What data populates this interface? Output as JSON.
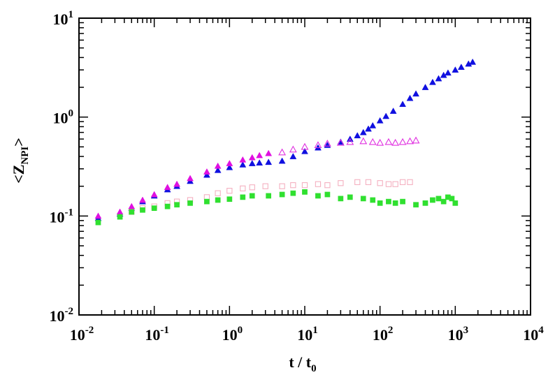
{
  "chart_data": {
    "type": "scatter",
    "title": "",
    "xlabel": {
      "main": "t / t",
      "sub": "0"
    },
    "ylabel": {
      "main": "<Z",
      "sub": "NPI",
      "end": ">"
    },
    "xscale": "log",
    "yscale": "log",
    "xlim": [
      0.01,
      10000
    ],
    "ylim": [
      0.01,
      10
    ],
    "grid": false,
    "legend": "none",
    "x_ticks": [
      {
        "value": 0.01,
        "base": "10",
        "exp": "-2"
      },
      {
        "value": 0.1,
        "base": "10",
        "exp": "-1"
      },
      {
        "value": 1,
        "base": "10",
        "exp": "0"
      },
      {
        "value": 10,
        "base": "10",
        "exp": "1"
      },
      {
        "value": 100,
        "base": "10",
        "exp": "2"
      },
      {
        "value": 1000,
        "base": "10",
        "exp": "3"
      },
      {
        "value": 10000,
        "base": "10",
        "exp": "4"
      }
    ],
    "y_ticks": [
      {
        "value": 0.01,
        "base": "10",
        "exp": "-2"
      },
      {
        "value": 0.1,
        "base": "10",
        "exp": "-1"
      },
      {
        "value": 1,
        "base": "10",
        "exp": "0"
      },
      {
        "value": 10,
        "base": "10",
        "exp": "1"
      }
    ],
    "series": [
      {
        "color": "#1010e0",
        "marker": "triangle",
        "filled": true,
        "points": [
          [
            0.018,
            0.095
          ],
          [
            0.035,
            0.105
          ],
          [
            0.05,
            0.12
          ],
          [
            0.07,
            0.14
          ],
          [
            0.1,
            0.16
          ],
          [
            0.15,
            0.185
          ],
          [
            0.2,
            0.2
          ],
          [
            0.3,
            0.225
          ],
          [
            0.5,
            0.26
          ],
          [
            0.7,
            0.29
          ],
          [
            1.0,
            0.31
          ],
          [
            1.5,
            0.33
          ],
          [
            2.0,
            0.34
          ],
          [
            2.5,
            0.345
          ],
          [
            3.3,
            0.35
          ],
          [
            5.0,
            0.36
          ],
          [
            7.0,
            0.4
          ],
          [
            10,
            0.45
          ],
          [
            15,
            0.49
          ],
          [
            20,
            0.52
          ],
          [
            30,
            0.56
          ],
          [
            40,
            0.6
          ],
          [
            50,
            0.65
          ],
          [
            60,
            0.7
          ],
          [
            70,
            0.76
          ],
          [
            80,
            0.82
          ],
          [
            100,
            0.92
          ],
          [
            120,
            1.02
          ],
          [
            150,
            1.15
          ],
          [
            200,
            1.35
          ],
          [
            250,
            1.55
          ],
          [
            300,
            1.72
          ],
          [
            400,
            2.0
          ],
          [
            500,
            2.25
          ],
          [
            600,
            2.45
          ],
          [
            700,
            2.65
          ],
          [
            800,
            2.8
          ],
          [
            1000,
            3.0
          ],
          [
            1200,
            3.2
          ],
          [
            1500,
            3.45
          ],
          [
            1700,
            3.6
          ]
        ]
      },
      {
        "color": "#e010e0",
        "marker": "triangle",
        "filled": true,
        "points": [
          [
            0.018,
            0.1
          ],
          [
            0.035,
            0.11
          ],
          [
            0.05,
            0.125
          ],
          [
            0.07,
            0.145
          ],
          [
            0.1,
            0.165
          ],
          [
            0.15,
            0.195
          ],
          [
            0.2,
            0.21
          ],
          [
            0.3,
            0.24
          ],
          [
            0.5,
            0.28
          ],
          [
            0.7,
            0.32
          ],
          [
            1.0,
            0.34
          ],
          [
            1.5,
            0.37
          ],
          [
            2.0,
            0.39
          ],
          [
            2.5,
            0.41
          ],
          [
            3.3,
            0.43
          ]
        ]
      },
      {
        "color": "#e030e0",
        "marker": "triangle",
        "filled": false,
        "points": [
          [
            5.0,
            0.44
          ],
          [
            7.0,
            0.47
          ],
          [
            10,
            0.5
          ],
          [
            15,
            0.52
          ],
          [
            20,
            0.54
          ],
          [
            30,
            0.55
          ],
          [
            40,
            0.56
          ],
          [
            60,
            0.57
          ],
          [
            80,
            0.56
          ],
          [
            100,
            0.55
          ],
          [
            130,
            0.56
          ],
          [
            160,
            0.55
          ],
          [
            200,
            0.56
          ],
          [
            250,
            0.57
          ],
          [
            300,
            0.58
          ]
        ]
      },
      {
        "color": "#f4b0c0",
        "marker": "square",
        "filled": false,
        "points": [
          [
            0.05,
            0.11
          ],
          [
            0.07,
            0.12
          ],
          [
            0.1,
            0.125
          ],
          [
            0.15,
            0.135
          ],
          [
            0.2,
            0.14
          ],
          [
            0.3,
            0.145
          ],
          [
            0.5,
            0.155
          ],
          [
            0.7,
            0.17
          ],
          [
            1.0,
            0.18
          ],
          [
            1.5,
            0.19
          ],
          [
            2.0,
            0.195
          ],
          [
            3.0,
            0.2
          ],
          [
            5.0,
            0.2
          ],
          [
            7.0,
            0.205
          ],
          [
            10,
            0.205
          ],
          [
            15,
            0.21
          ],
          [
            20,
            0.205
          ],
          [
            30,
            0.215
          ],
          [
            50,
            0.22
          ],
          [
            70,
            0.22
          ],
          [
            100,
            0.215
          ],
          [
            130,
            0.21
          ],
          [
            160,
            0.21
          ],
          [
            200,
            0.22
          ],
          [
            250,
            0.22
          ]
        ]
      },
      {
        "color": "#30e030",
        "marker": "square",
        "filled": true,
        "points": [
          [
            0.018,
            0.086
          ],
          [
            0.035,
            0.098
          ],
          [
            0.05,
            0.11
          ],
          [
            0.07,
            0.115
          ],
          [
            0.1,
            0.12
          ],
          [
            0.15,
            0.125
          ],
          [
            0.2,
            0.13
          ],
          [
            0.3,
            0.135
          ],
          [
            0.5,
            0.14
          ],
          [
            0.7,
            0.145
          ],
          [
            1.0,
            0.148
          ],
          [
            1.5,
            0.155
          ],
          [
            2.0,
            0.16
          ],
          [
            3.3,
            0.16
          ],
          [
            5.0,
            0.165
          ],
          [
            7.0,
            0.17
          ],
          [
            10,
            0.175
          ],
          [
            15,
            0.16
          ],
          [
            20,
            0.165
          ],
          [
            30,
            0.15
          ],
          [
            40,
            0.155
          ],
          [
            60,
            0.15
          ],
          [
            80,
            0.145
          ],
          [
            100,
            0.135
          ],
          [
            130,
            0.14
          ],
          [
            160,
            0.135
          ],
          [
            200,
            0.14
          ],
          [
            300,
            0.13
          ],
          [
            400,
            0.135
          ],
          [
            500,
            0.145
          ],
          [
            600,
            0.15
          ],
          [
            700,
            0.14
          ],
          [
            800,
            0.155
          ],
          [
            900,
            0.15
          ],
          [
            1000,
            0.135
          ]
        ]
      }
    ]
  }
}
